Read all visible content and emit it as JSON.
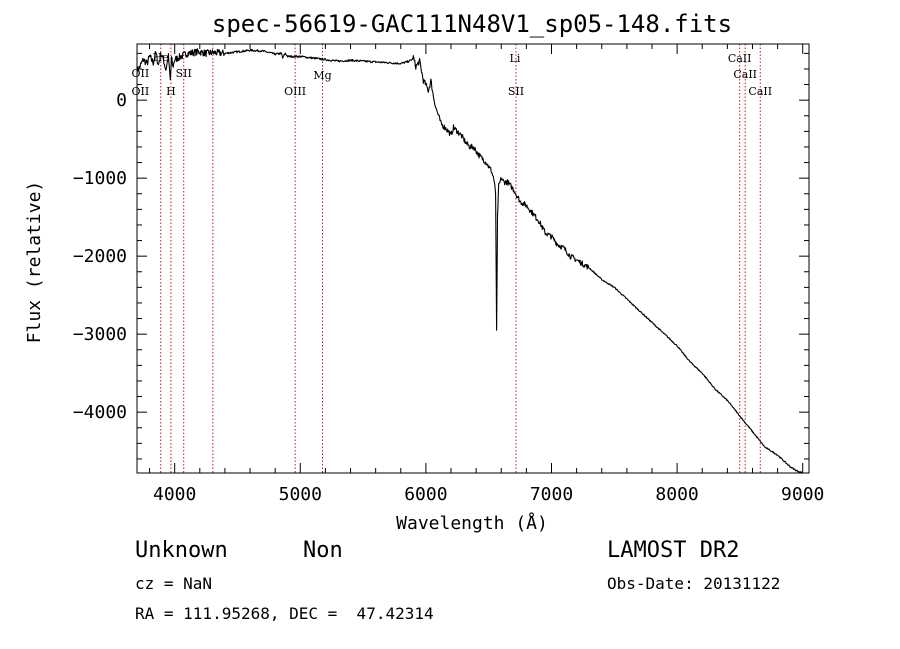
{
  "chart_data": {
    "type": "line",
    "title": "spec-56619-GAC111N48V1_sp05-148.fits",
    "xlabel": "Wavelength (Å)",
    "ylabel": "Flux (relative)",
    "xlim": [
      3700,
      9050
    ],
    "ylim": [
      -4780,
      720
    ],
    "xticks": [
      4000,
      5000,
      6000,
      7000,
      8000,
      9000
    ],
    "xtick_labels": [
      "4000",
      "5000",
      "6000",
      "7000",
      "8000",
      "9000"
    ],
    "yticks": [
      0,
      -1000,
      -2000,
      -3000,
      -4000
    ],
    "ytick_labels": [
      "0",
      "−1000",
      "−2000",
      "−3000",
      "−4000"
    ],
    "grid": false,
    "line_color": "#000000",
    "marker_color": "#b22222",
    "series": [
      {
        "x": [
          3700,
          3720,
          3750,
          3780,
          3800,
          3830,
          3850,
          3870,
          3890,
          3910,
          3930,
          3950,
          3965,
          3975,
          3985,
          4000,
          4050,
          4100,
          4150,
          4200,
          4250,
          4300,
          4400,
          4500,
          4600,
          4700,
          4800,
          4850,
          4860,
          4880,
          4900,
          5000,
          5100,
          5200,
          5300,
          5400,
          5500,
          5600,
          5700,
          5800,
          5850,
          5890,
          5900,
          5920,
          5950,
          5980,
          6000,
          6020,
          6040,
          6060,
          6080,
          6100,
          6120,
          6150,
          6180,
          6200,
          6220,
          6250,
          6280,
          6300,
          6320,
          6350,
          6380,
          6400,
          6420,
          6450,
          6480,
          6500,
          6520,
          6540,
          6555,
          6563,
          6570,
          6580,
          6600,
          6620,
          6650,
          6700,
          6750,
          6800,
          6850,
          6900,
          6950,
          7000,
          7050,
          7100,
          7150,
          7200,
          7300,
          7400,
          7500,
          7600,
          7700,
          7800,
          7900,
          8000,
          8100,
          8200,
          8300,
          8400,
          8500,
          8600,
          8700,
          8800,
          8900,
          8950,
          9000
        ],
        "y": [
          380,
          420,
          520,
          470,
          560,
          480,
          610,
          450,
          600,
          520,
          390,
          560,
          250,
          540,
          420,
          520,
          560,
          600,
          610,
          620,
          600,
          610,
          600,
          620,
          640,
          630,
          590,
          600,
          540,
          600,
          560,
          560,
          540,
          520,
          500,
          510,
          500,
          490,
          480,
          470,
          490,
          520,
          550,
          430,
          500,
          250,
          200,
          120,
          250,
          50,
          -100,
          -200,
          -300,
          -350,
          -400,
          -450,
          -350,
          -400,
          -450,
          -500,
          -550,
          -600,
          -600,
          -650,
          -700,
          -750,
          -800,
          -850,
          -900,
          -1000,
          -1200,
          -2950,
          -1500,
          -1100,
          -1000,
          -1050,
          -1050,
          -1150,
          -1300,
          -1350,
          -1450,
          -1550,
          -1700,
          -1750,
          -1850,
          -1900,
          -2000,
          -2050,
          -2150,
          -2300,
          -2400,
          -2550,
          -2700,
          -2850,
          -3000,
          -3150,
          -3350,
          -3500,
          -3700,
          -3850,
          -4050,
          -4250,
          -4450,
          -4550,
          -4700,
          -4750,
          -4780
        ]
      }
    ],
    "markers_top": [
      {
        "x": 3727,
        "label": "OII"
      },
      {
        "x": 3889,
        "label": "He"
      },
      {
        "x": 4072,
        "label": "SII"
      },
      {
        "x": 5177,
        "label": "Mg"
      },
      {
        "x": 6709,
        "label": "Li"
      },
      {
        "x": 8498,
        "label": "CaII"
      },
      {
        "x": 8542,
        "label": "CaII"
      }
    ],
    "markers_bottom": [
      {
        "x": 3727,
        "label": "OII"
      },
      {
        "x": 3970,
        "label": "H"
      },
      {
        "x": 4959,
        "label": "OIII"
      },
      {
        "x": 6717,
        "label": "SII"
      },
      {
        "x": 8662,
        "label": "CaII"
      }
    ],
    "marker_lines": [
      3889,
      3970,
      4072,
      4304,
      4959,
      5177,
      6717,
      8498,
      8542,
      8662
    ]
  },
  "info": {
    "object_class": "Unknown",
    "subclass": "Non",
    "survey": "LAMOST DR2",
    "cz": "cz = NaN",
    "obs_date": "Obs-Date: 20131122",
    "coords": "RA = 111.95268, DEC =  47.42314"
  }
}
